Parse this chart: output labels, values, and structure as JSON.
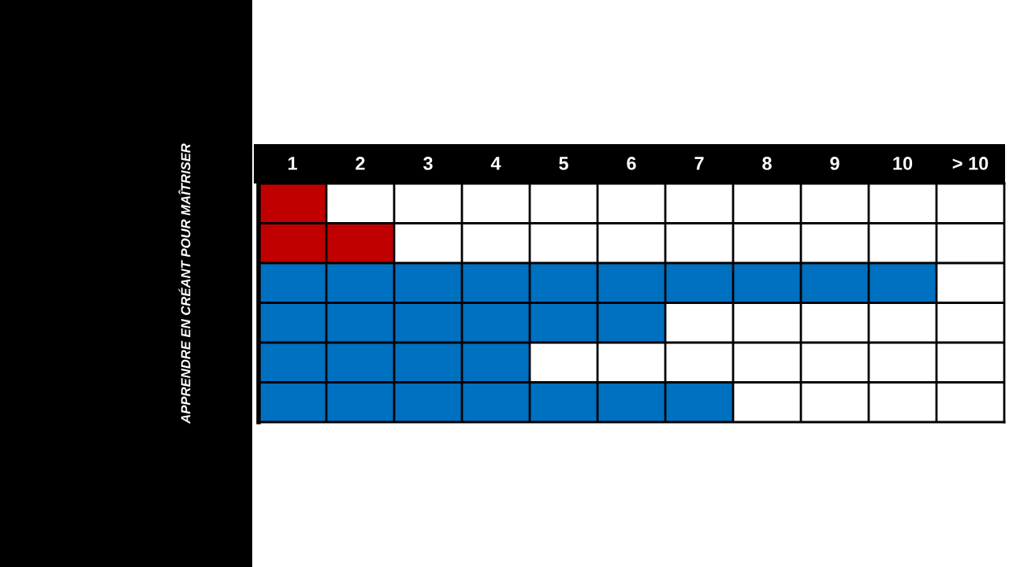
{
  "chart_data": {
    "type": "bar",
    "orientation": "horizontal",
    "categories": [
      null,
      null,
      null,
      null,
      null,
      null
    ],
    "values": [
      1,
      2,
      10,
      6,
      4,
      7
    ],
    "base": [
      0.5,
      0.5,
      0.5,
      0.5,
      0.5,
      0.5
    ],
    "colors": [
      "#c00000",
      "#c00000",
      "#0070c0",
      "#0070c0",
      "#0070c0",
      "#0070c0"
    ],
    "xlim": [
      0.5,
      11.5
    ],
    "xticks": [
      1,
      2,
      3,
      4,
      5,
      6,
      7,
      8,
      9,
      10,
      {
        "value": 11,
        "label": "> 10"
      }
    ],
    "grid": true,
    "tick_labels": "x",
    "annotations": [
      "APPRENDRE EN CRÉANT POUR MAÎTRISER"
    ]
  }
}
